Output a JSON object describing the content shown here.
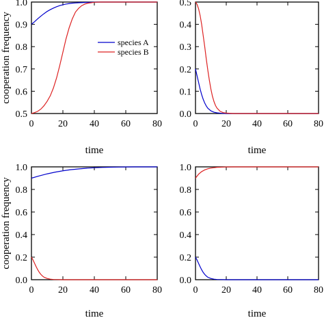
{
  "chart_data": [
    {
      "type": "line",
      "xlabel": "time",
      "ylabel": "cooperation frequency",
      "xlim": [
        0,
        80
      ],
      "ylim": [
        0.5,
        1.0
      ],
      "xticks": [
        "0",
        "20",
        "40",
        "60",
        "80"
      ],
      "yticks": [
        "0.5",
        "0.6",
        "0.7",
        "0.8",
        "0.9",
        "1.0"
      ],
      "legend": {
        "placement": "right-middle"
      },
      "series": [
        {
          "name": "species A",
          "color": "#0000cc",
          "x": [
            0,
            2,
            4,
            6,
            8,
            10,
            12,
            14,
            16,
            18,
            20,
            22,
            24,
            26,
            28,
            30,
            34,
            38,
            42,
            50,
            60,
            70,
            80
          ],
          "y": [
            0.9,
            0.912,
            0.925,
            0.937,
            0.948,
            0.958,
            0.966,
            0.973,
            0.979,
            0.984,
            0.988,
            0.991,
            0.993,
            0.995,
            0.996,
            0.997,
            0.998,
            0.999,
            1.0,
            1.0,
            1.0,
            1.0,
            1.0
          ]
        },
        {
          "name": "species B",
          "color": "#dd2222",
          "x": [
            0,
            2,
            4,
            6,
            8,
            10,
            12,
            14,
            16,
            18,
            20,
            22,
            24,
            26,
            28,
            30,
            32,
            34,
            36,
            38,
            40,
            44,
            50,
            60,
            70,
            80
          ],
          "y": [
            0.5,
            0.504,
            0.51,
            0.52,
            0.535,
            0.555,
            0.58,
            0.615,
            0.66,
            0.715,
            0.775,
            0.835,
            0.885,
            0.925,
            0.955,
            0.972,
            0.984,
            0.991,
            0.995,
            0.997,
            0.999,
            1.0,
            1.0,
            1.0,
            1.0,
            1.0
          ]
        }
      ]
    },
    {
      "type": "line",
      "xlabel": "time",
      "ylabel": "",
      "xlim": [
        0,
        80
      ],
      "ylim": [
        0.0,
        0.5
      ],
      "xticks": [
        "0",
        "20",
        "40",
        "60",
        "80"
      ],
      "yticks": [
        "0.0",
        "0.1",
        "0.2",
        "0.3",
        "0.4",
        "0.5"
      ],
      "series": [
        {
          "color": "#0000cc",
          "x": [
            0,
            1,
            2,
            3,
            4,
            5,
            6,
            7,
            8,
            10,
            12,
            14,
            17,
            20,
            25,
            30,
            40,
            60,
            80
          ],
          "y": [
            0.2,
            0.17,
            0.14,
            0.11,
            0.085,
            0.064,
            0.047,
            0.034,
            0.024,
            0.012,
            0.006,
            0.003,
            0.001,
            0.0,
            0.0,
            0.0,
            0.0,
            0.0,
            0.0
          ]
        },
        {
          "color": "#dd2222",
          "x": [
            0,
            1,
            2,
            3,
            4,
            5,
            6,
            7,
            8,
            9,
            10,
            11,
            12,
            13,
            14,
            16,
            18,
            20,
            25,
            30,
            40,
            60,
            80
          ],
          "y": [
            0.5,
            0.49,
            0.47,
            0.44,
            0.4,
            0.35,
            0.3,
            0.245,
            0.195,
            0.15,
            0.11,
            0.078,
            0.054,
            0.036,
            0.024,
            0.01,
            0.004,
            0.002,
            0.0,
            0.0,
            0.0,
            0.0,
            0.0
          ]
        }
      ]
    },
    {
      "type": "line",
      "xlabel": "time",
      "ylabel": "cooperation frequency",
      "xlim": [
        0,
        80
      ],
      "ylim": [
        0.0,
        1.0
      ],
      "xticks": [
        "0",
        "20",
        "40",
        "60",
        "80"
      ],
      "yticks": [
        "0.0",
        "0.2",
        "0.4",
        "0.6",
        "0.8",
        "1.0"
      ],
      "series": [
        {
          "color": "#0000cc",
          "x": [
            0,
            5,
            10,
            15,
            20,
            25,
            30,
            35,
            40,
            45,
            50,
            55,
            60,
            65,
            70,
            75,
            80
          ],
          "y": [
            0.9,
            0.92,
            0.938,
            0.953,
            0.965,
            0.975,
            0.982,
            0.988,
            0.992,
            0.995,
            0.997,
            0.998,
            0.999,
            1.0,
            1.0,
            1.0,
            1.0
          ]
        },
        {
          "color": "#dd2222",
          "x": [
            0,
            1,
            2,
            3,
            4,
            5,
            6,
            7,
            8,
            10,
            12,
            14,
            17,
            20,
            25,
            30,
            40,
            60,
            80
          ],
          "y": [
            0.2,
            0.175,
            0.145,
            0.115,
            0.088,
            0.065,
            0.047,
            0.033,
            0.022,
            0.011,
            0.005,
            0.002,
            0.001,
            0.0,
            0.0,
            0.0,
            0.0,
            0.0,
            0.0
          ]
        }
      ]
    },
    {
      "type": "line",
      "xlabel": "time",
      "ylabel": "",
      "xlim": [
        0,
        80
      ],
      "ylim": [
        0.0,
        1.0
      ],
      "xticks": [
        "0",
        "20",
        "40",
        "60",
        "80"
      ],
      "yticks": [
        "0.0",
        "0.2",
        "0.4",
        "0.6",
        "0.8",
        "1.0"
      ],
      "series": [
        {
          "color": "#0000cc",
          "x": [
            0,
            1,
            2,
            3,
            4,
            5,
            6,
            7,
            8,
            10,
            12,
            14,
            17,
            20,
            25,
            30,
            40,
            60,
            80
          ],
          "y": [
            0.2,
            0.175,
            0.145,
            0.115,
            0.088,
            0.065,
            0.047,
            0.033,
            0.022,
            0.011,
            0.005,
            0.002,
            0.001,
            0.0,
            0.0,
            0.0,
            0.0,
            0.0,
            0.0
          ]
        },
        {
          "color": "#dd2222",
          "x": [
            0,
            2,
            4,
            6,
            8,
            10,
            12,
            14,
            16,
            18,
            20,
            25,
            30,
            40,
            60,
            80
          ],
          "y": [
            0.9,
            0.935,
            0.958,
            0.973,
            0.983,
            0.989,
            0.993,
            0.996,
            0.997,
            0.998,
            0.999,
            1.0,
            1.0,
            1.0,
            1.0,
            1.0
          ]
        }
      ]
    }
  ]
}
